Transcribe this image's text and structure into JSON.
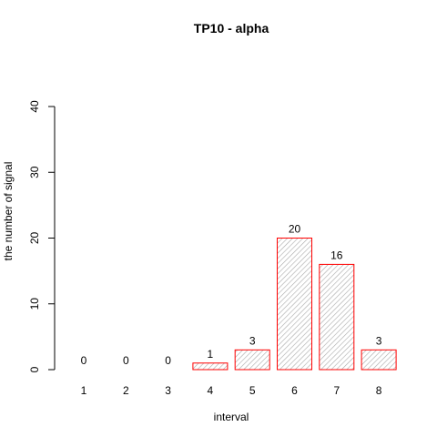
{
  "chart_data": {
    "type": "bar",
    "title": "TP10  -  alpha",
    "xlabel": "interval",
    "ylabel": "the number of signal",
    "categories": [
      "1",
      "2",
      "3",
      "4",
      "5",
      "6",
      "7",
      "8"
    ],
    "values": [
      0,
      0,
      0,
      1,
      3,
      20,
      16,
      3
    ],
    "data_labels": [
      "0",
      "0",
      "0",
      "1",
      "3",
      "20",
      "16",
      "3"
    ],
    "ylim": [
      0,
      40
    ],
    "yticks": [
      "0",
      "10",
      "20",
      "30",
      "40"
    ],
    "bar_fill": "hatched gray",
    "bar_border_color": "#ff0000",
    "hatch_color": "#a0a0a0"
  }
}
